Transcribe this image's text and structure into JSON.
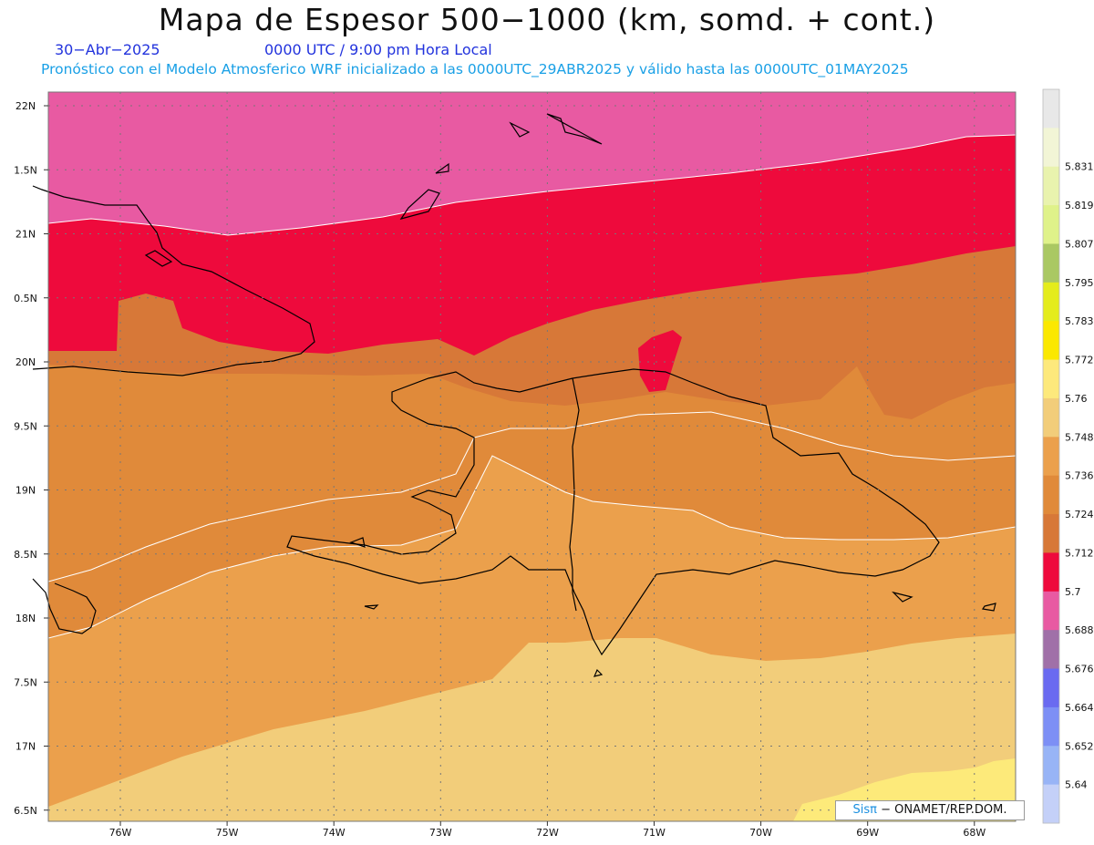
{
  "header": {
    "title": "Mapa de Espesor 500−1000 (km, somd. + cont.)",
    "date": "30−Abr−2025",
    "time": "0000 UTC / 9:00 pm Hora Local",
    "description": "Pronóstico con el Modelo Atmosferico WRF inicializado a las 0000UTC_29ABR2025 y válido hasta las  0000UTC_01MAY2025"
  },
  "map": {
    "lat_labels": [
      "22N",
      "1.5N",
      "21N",
      "0.5N",
      "20N",
      "9.5N",
      "19N",
      "8.5N",
      "18N",
      "7.5N",
      "17N",
      "6.5N"
    ],
    "lon_labels": [
      "76W",
      "75W",
      "74W",
      "73W",
      "72W",
      "71W",
      "70W",
      "69W",
      "68W"
    ],
    "colors": {
      "band_5688": "#e85aa2",
      "band_5700": "#ee0a3c",
      "band_5712": "#d77838",
      "band_5724": "#e08a3a",
      "band_5736": "#eba04c",
      "band_5748": "#f2cd7a",
      "band_5760": "#fdea7a"
    }
  },
  "colorbar": {
    "labels": [
      "5.831",
      "5.819",
      "5.807",
      "5.795",
      "5.783",
      "5.772",
      "5.76",
      "5.748",
      "5.736",
      "5.724",
      "5.712",
      "5.7",
      "5.688",
      "5.676",
      "5.664",
      "5.652",
      "5.64"
    ],
    "colors": [
      "#e8e8e8",
      "#f2f5d6",
      "#e9f3ae",
      "#dff28a",
      "#aac863",
      "#e4ec1c",
      "#fbe800",
      "#fde97c",
      "#f2cd7a",
      "#eba04c",
      "#e08a3a",
      "#d77838",
      "#ee0a3c",
      "#e85aa2",
      "#a070a8",
      "#6a6af0",
      "#7d8ff5",
      "#98b4f6",
      "#c4d0f8"
    ]
  },
  "credit": {
    "brand": "Sisπ",
    "text": "− ONAMET/REP.DOM."
  }
}
